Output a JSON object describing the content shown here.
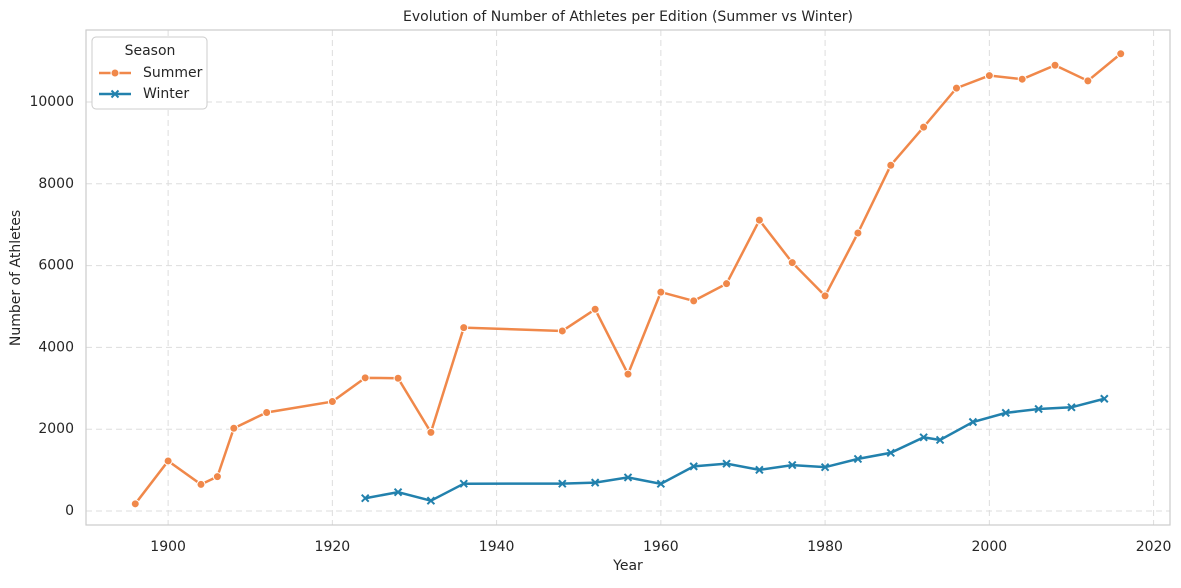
{
  "chart_data": {
    "type": "line",
    "title": "Evolution of Number of Athletes per Edition (Summer vs Winter)",
    "x_label": "Year",
    "y_label": "Number of Athletes",
    "legend_title": "Season",
    "legend_loc": "upper left",
    "grid": true,
    "xlim": [
      1890,
      2022
    ],
    "xticks": [
      1900,
      1920,
      1940,
      1960,
      1980,
      2000,
      2020
    ],
    "ylim": [
      -342,
      11760
    ],
    "yticks": [
      0,
      2000,
      4000,
      6000,
      8000,
      10000
    ],
    "series": [
      {
        "name": "Summer",
        "color": "#f0884a",
        "marker": "o",
        "x": [
          1896,
          1900,
          1904,
          1906,
          1908,
          1912,
          1920,
          1924,
          1928,
          1932,
          1936,
          1948,
          1952,
          1956,
          1960,
          1964,
          1968,
          1972,
          1976,
          1980,
          1984,
          1988,
          1992,
          1996,
          2000,
          2004,
          2008,
          2012,
          2016
        ],
        "values": [
          176,
          1224,
          650,
          841,
          2024,
          2409,
          2676,
          3256,
          3246,
          1922,
          4484,
          4402,
          4932,
          3347,
          5352,
          5137,
          5558,
          7111,
          6073,
          5259,
          6797,
          8454,
          9386,
          10339,
          10646,
          10557,
          10899,
          10517,
          11179
        ]
      },
      {
        "name": "Winter",
        "color": "#2281ad",
        "marker": "x",
        "x": [
          1924,
          1928,
          1932,
          1936,
          1948,
          1952,
          1956,
          1960,
          1964,
          1968,
          1972,
          1976,
          1980,
          1984,
          1988,
          1992,
          1994,
          1998,
          2002,
          2006,
          2010,
          2014
        ],
        "values": [
          313,
          460,
          252,
          668,
          669,
          694,
          821,
          665,
          1091,
          1158,
          1006,
          1123,
          1072,
          1274,
          1423,
          1801,
          1737,
          2176,
          2399,
          2494,
          2536,
          2745
        ]
      }
    ]
  }
}
